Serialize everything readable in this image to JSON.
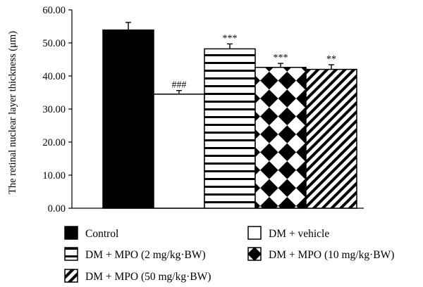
{
  "chart_data": {
    "type": "bar",
    "categories": [
      "Control",
      "DM + vehicle",
      "DM + MPO (2 mg/kg·BW)",
      "DM + MPO (10 mg/kg·BW)",
      "DM + MPO (50 mg/kg·BW)"
    ],
    "values": [
      53.9,
      34.5,
      48.2,
      42.6,
      42.0
    ],
    "errors": [
      2.3,
      1.1,
      1.5,
      1.2,
      1.4
    ],
    "annotations": [
      "",
      "###",
      "***",
      "***",
      "**"
    ],
    "title": "",
    "xlabel": "",
    "ylabel": "The retinal nuclear layer thickness (μm)",
    "ylim": [
      0,
      60
    ],
    "yticks": [
      "0.00",
      "10.00",
      "20.00",
      "30.00",
      "40.00",
      "50.00",
      "60.00"
    ],
    "grid": false,
    "legend_position": "bottom",
    "fills": [
      "solid-black",
      "white",
      "horizontal-stripes",
      "checker-diamond",
      "diagonal-stripes"
    ],
    "colors": {
      "ink": "#000000",
      "background": "#ffffff"
    }
  }
}
